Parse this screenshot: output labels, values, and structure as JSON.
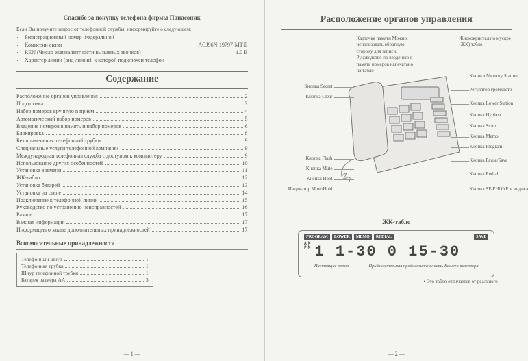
{
  "left": {
    "thankyou": "Спасибо за покупку телефона фирмы Панасоник",
    "intro": "Если Вы получите запрос от телефонной службы, информируйте о следующем:",
    "bullets": [
      "Регистрационный номер Федеральной",
      "Комиссии связи",
      "REN (Число эквивалентности вызывных звонков)",
      "Характер линии (вид линии), к которой подключен телефон"
    ],
    "reg_value": "ACJ96N-19797-MT-E",
    "ren_value": "1.0 B",
    "toc_title": "Содержание",
    "toc": [
      {
        "label": "Расположение органов управления",
        "page": "2"
      },
      {
        "label": "Подготовка",
        "page": "3"
      },
      {
        "label": "Набор номеров вручную и прием",
        "page": "4"
      },
      {
        "label": "Автоматический набор номеров",
        "page": "5"
      },
      {
        "label": "Введение номеров в память и набор номеров",
        "page": "6"
      },
      {
        "label": "Блокировка",
        "page": "8"
      },
      {
        "label": "Без применения телефонной трубки",
        "page": "9"
      },
      {
        "label": "Специальные услуги телефонной компании",
        "page": "9"
      },
      {
        "label": "Международная телефонная служба с доступом к компьютеру",
        "page": "9"
      },
      {
        "label": "Использование других особенностей",
        "page": "10"
      },
      {
        "label": "Установка времени",
        "page": "11"
      },
      {
        "label": "ЖК-табло",
        "page": "12"
      },
      {
        "label": "Установка батарей",
        "page": "13"
      },
      {
        "label": "Установка на стене",
        "page": "14"
      },
      {
        "label": "Подключение к телефонной линии",
        "page": "15"
      },
      {
        "label": "Руководство по устранению неисправностей",
        "page": "16"
      },
      {
        "label": "Разное",
        "page": "17"
      },
      {
        "label": "Важная информация",
        "page": "17"
      },
      {
        "label": "Информация о заказе дополнительных принадлежностей",
        "page": "17"
      }
    ],
    "acc_title": "Вспомогательные принадлежности",
    "accessories": [
      {
        "label": "Телефонный шнур",
        "qty": "1"
      },
      {
        "label": "Телефонная трубка",
        "qty": "1"
      },
      {
        "label": "Шнур телефонной трубки",
        "qty": "1"
      },
      {
        "label": "Батарея размера AA",
        "qty": "3"
      }
    ],
    "pageno": "— 1 —"
  },
  "right": {
    "title": "Расположение органов управления",
    "memo_card": "Карточка памяти\nМожно использовать обратную сторону для записи. Руководство по введению в память номеров напечатано на табло",
    "lcd_label": "Жидкокристал\nпо мускре\n(ЖК) табло",
    "callouts_left": [
      "Кнопка Secret",
      "Кнопка Clear",
      "Кнопка Flash",
      "Кнопка Mute",
      "Кнопка Hold",
      "Индикатор Mute/Hold"
    ],
    "callouts_right": [
      "Кнопки Memory Station",
      "Регулятор громкости",
      "Кнопка Lower Station",
      "Кнопка Hyphen",
      "Кнопка Store",
      "Кнопка Memo",
      "Кнопка Program",
      "Кнопка Pause/Save",
      "Кнопка Redial",
      "Кнопка SP-PHONE и индикатор"
    ],
    "lcd_sub": "ЖК-табло",
    "lcd_tags": [
      "PROGRAM",
      "LOWER",
      "MEMO",
      "REDIAL"
    ],
    "lcd_tag_right": "SAVE",
    "ampm_am": "AM",
    "ampm_pm": "PM",
    "lcd_digits": "1 1-30 0 15-30",
    "lcd_note_left": "Настоящее время",
    "lcd_note_right": "Приблизительная продолжительность Вашего разговора",
    "lcd_footnote": "• Это табло отличается от реального",
    "pageno": "— 2 —"
  }
}
